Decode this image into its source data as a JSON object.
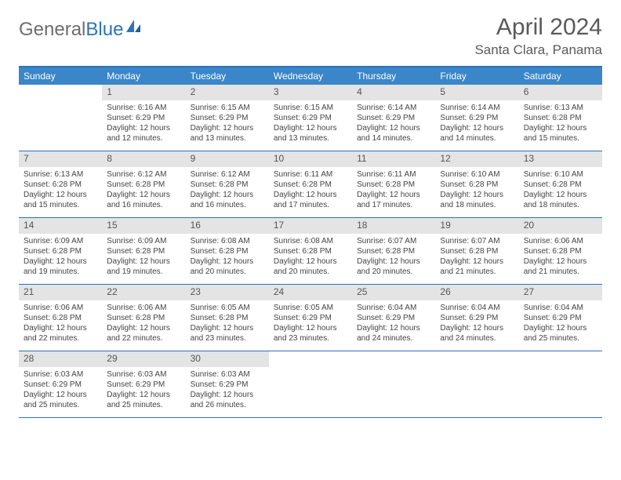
{
  "logo": {
    "text1": "General",
    "text2": "Blue"
  },
  "title": "April 2024",
  "location": "Santa Clara, Panama",
  "colors": {
    "header_bar": "#3b86c8",
    "border": "#2b74b8",
    "daynum_bg": "#e4e4e4",
    "logo_gray": "#6d6d6d",
    "logo_blue": "#2b74b8",
    "text": "#5a5a5a"
  },
  "weekdays": [
    "Sunday",
    "Monday",
    "Tuesday",
    "Wednesday",
    "Thursday",
    "Friday",
    "Saturday"
  ],
  "weeks": [
    [
      null,
      {
        "n": "1",
        "sr": "6:16 AM",
        "ss": "6:29 PM",
        "dl": "12 hours and 12 minutes."
      },
      {
        "n": "2",
        "sr": "6:15 AM",
        "ss": "6:29 PM",
        "dl": "12 hours and 13 minutes."
      },
      {
        "n": "3",
        "sr": "6:15 AM",
        "ss": "6:29 PM",
        "dl": "12 hours and 13 minutes."
      },
      {
        "n": "4",
        "sr": "6:14 AM",
        "ss": "6:29 PM",
        "dl": "12 hours and 14 minutes."
      },
      {
        "n": "5",
        "sr": "6:14 AM",
        "ss": "6:29 PM",
        "dl": "12 hours and 14 minutes."
      },
      {
        "n": "6",
        "sr": "6:13 AM",
        "ss": "6:28 PM",
        "dl": "12 hours and 15 minutes."
      }
    ],
    [
      {
        "n": "7",
        "sr": "6:13 AM",
        "ss": "6:28 PM",
        "dl": "12 hours and 15 minutes."
      },
      {
        "n": "8",
        "sr": "6:12 AM",
        "ss": "6:28 PM",
        "dl": "12 hours and 16 minutes."
      },
      {
        "n": "9",
        "sr": "6:12 AM",
        "ss": "6:28 PM",
        "dl": "12 hours and 16 minutes."
      },
      {
        "n": "10",
        "sr": "6:11 AM",
        "ss": "6:28 PM",
        "dl": "12 hours and 17 minutes."
      },
      {
        "n": "11",
        "sr": "6:11 AM",
        "ss": "6:28 PM",
        "dl": "12 hours and 17 minutes."
      },
      {
        "n": "12",
        "sr": "6:10 AM",
        "ss": "6:28 PM",
        "dl": "12 hours and 18 minutes."
      },
      {
        "n": "13",
        "sr": "6:10 AM",
        "ss": "6:28 PM",
        "dl": "12 hours and 18 minutes."
      }
    ],
    [
      {
        "n": "14",
        "sr": "6:09 AM",
        "ss": "6:28 PM",
        "dl": "12 hours and 19 minutes."
      },
      {
        "n": "15",
        "sr": "6:09 AM",
        "ss": "6:28 PM",
        "dl": "12 hours and 19 minutes."
      },
      {
        "n": "16",
        "sr": "6:08 AM",
        "ss": "6:28 PM",
        "dl": "12 hours and 20 minutes."
      },
      {
        "n": "17",
        "sr": "6:08 AM",
        "ss": "6:28 PM",
        "dl": "12 hours and 20 minutes."
      },
      {
        "n": "18",
        "sr": "6:07 AM",
        "ss": "6:28 PM",
        "dl": "12 hours and 20 minutes."
      },
      {
        "n": "19",
        "sr": "6:07 AM",
        "ss": "6:28 PM",
        "dl": "12 hours and 21 minutes."
      },
      {
        "n": "20",
        "sr": "6:06 AM",
        "ss": "6:28 PM",
        "dl": "12 hours and 21 minutes."
      }
    ],
    [
      {
        "n": "21",
        "sr": "6:06 AM",
        "ss": "6:28 PM",
        "dl": "12 hours and 22 minutes."
      },
      {
        "n": "22",
        "sr": "6:06 AM",
        "ss": "6:28 PM",
        "dl": "12 hours and 22 minutes."
      },
      {
        "n": "23",
        "sr": "6:05 AM",
        "ss": "6:28 PM",
        "dl": "12 hours and 23 minutes."
      },
      {
        "n": "24",
        "sr": "6:05 AM",
        "ss": "6:29 PM",
        "dl": "12 hours and 23 minutes."
      },
      {
        "n": "25",
        "sr": "6:04 AM",
        "ss": "6:29 PM",
        "dl": "12 hours and 24 minutes."
      },
      {
        "n": "26",
        "sr": "6:04 AM",
        "ss": "6:29 PM",
        "dl": "12 hours and 24 minutes."
      },
      {
        "n": "27",
        "sr": "6:04 AM",
        "ss": "6:29 PM",
        "dl": "12 hours and 25 minutes."
      }
    ],
    [
      {
        "n": "28",
        "sr": "6:03 AM",
        "ss": "6:29 PM",
        "dl": "12 hours and 25 minutes."
      },
      {
        "n": "29",
        "sr": "6:03 AM",
        "ss": "6:29 PM",
        "dl": "12 hours and 25 minutes."
      },
      {
        "n": "30",
        "sr": "6:03 AM",
        "ss": "6:29 PM",
        "dl": "12 hours and 26 minutes."
      },
      null,
      null,
      null,
      null
    ]
  ],
  "labels": {
    "sunrise": "Sunrise:",
    "sunset": "Sunset:",
    "daylight": "Daylight:"
  }
}
